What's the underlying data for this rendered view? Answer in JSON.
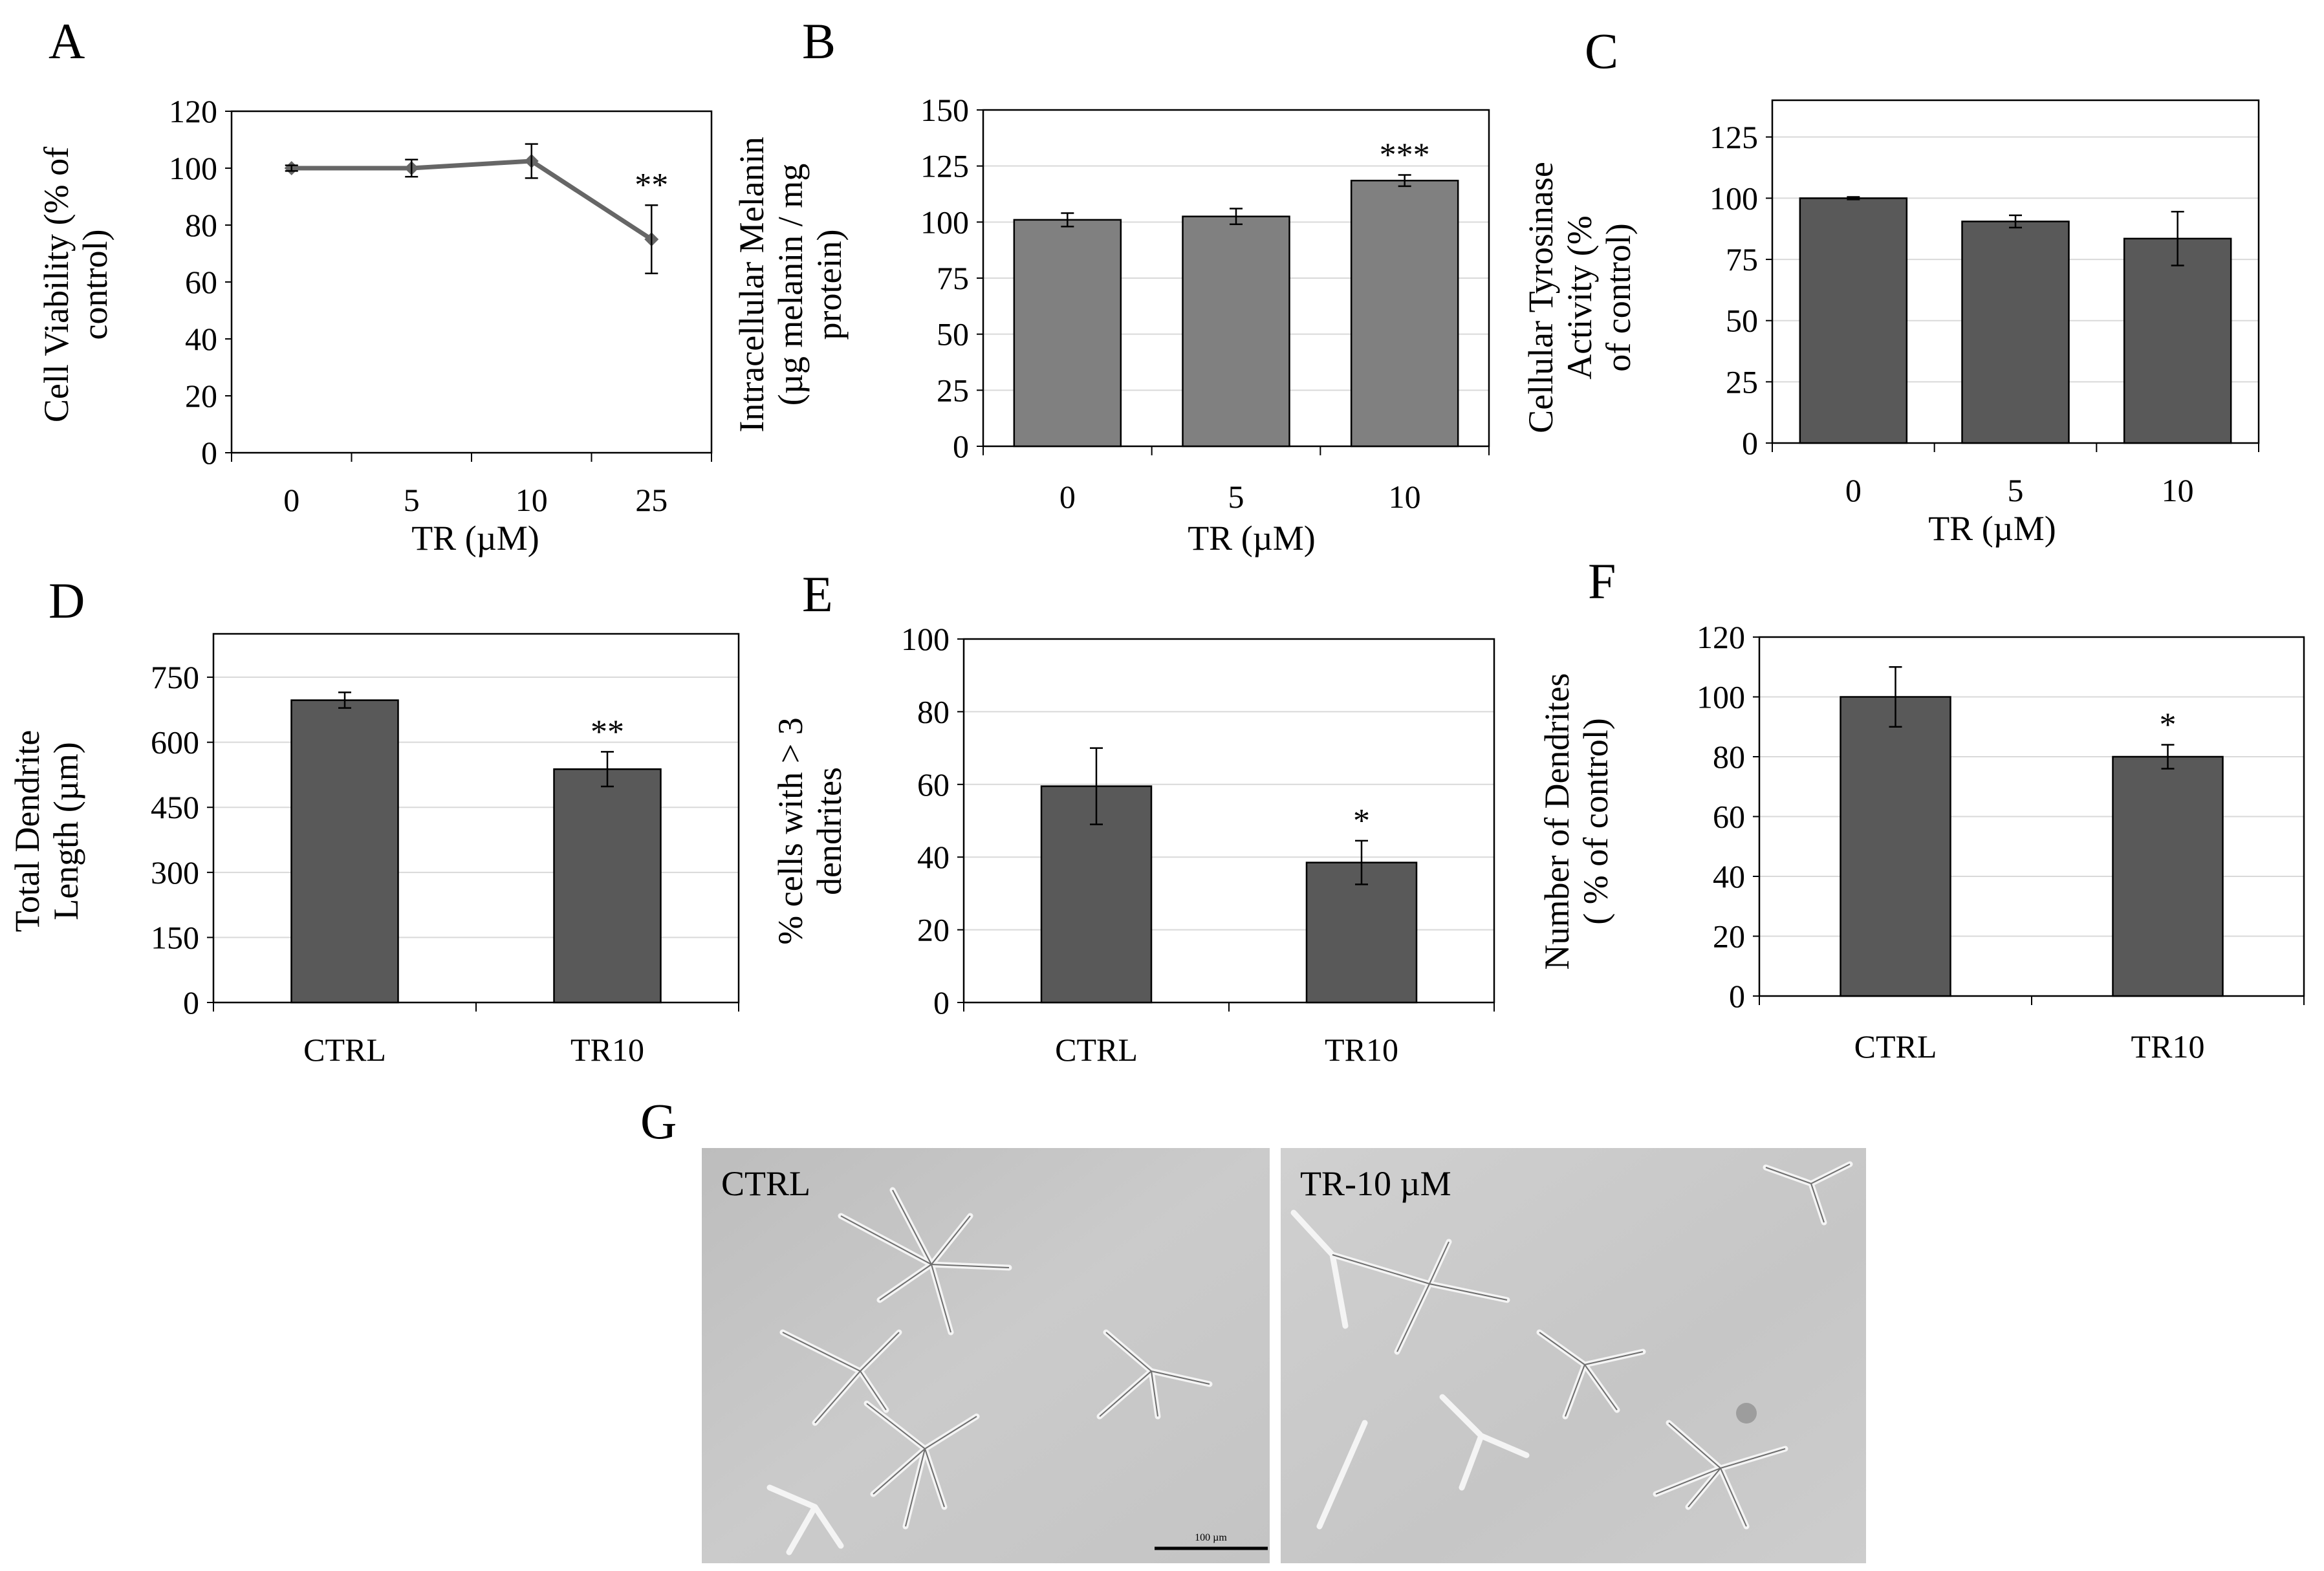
{
  "figure": {
    "panels": [
      {
        "letter": "A"
      },
      {
        "letter": "B"
      },
      {
        "letter": "C"
      },
      {
        "letter": "D"
      },
      {
        "letter": "E"
      },
      {
        "letter": "F"
      },
      {
        "letter": "G"
      }
    ]
  },
  "chart_data": [
    {
      "panel": "A",
      "type": "line",
      "categories": [
        "0",
        "5",
        "10",
        "25"
      ],
      "series": [
        {
          "values": [
            100,
            100,
            102.5,
            75
          ],
          "errors": [
            1,
            3,
            6,
            12
          ],
          "color": "#666666"
        }
      ],
      "xlabel": "TR (µM)",
      "ylabel_lines": [
        "Cell Viability (% of",
        "control)"
      ],
      "ylim": [
        0,
        120
      ],
      "yticks": [
        0,
        20,
        40,
        60,
        80,
        100,
        120
      ],
      "annotations": [
        {
          "category": "25",
          "text": "**"
        }
      ],
      "grid": false
    },
    {
      "panel": "B",
      "type": "bar",
      "categories": [
        "0",
        "5",
        "10"
      ],
      "series": [
        {
          "values": [
            101,
            102.5,
            118.5
          ],
          "errors": [
            3,
            3.5,
            2.5
          ],
          "color": "#808080"
        }
      ],
      "xlabel": "TR (µM)",
      "ylabel_lines": [
        "Intracellular Melanin",
        "(µg melanin / mg",
        "protein)"
      ],
      "ylim": [
        0,
        150
      ],
      "yticks": [
        0,
        25,
        50,
        75,
        100,
        125,
        150
      ],
      "annotations": [
        {
          "category": "10",
          "text": "***"
        }
      ],
      "grid": true
    },
    {
      "panel": "C",
      "type": "bar",
      "categories": [
        "0",
        "5",
        "10"
      ],
      "series": [
        {
          "values": [
            100,
            90.5,
            83.5
          ],
          "errors": [
            0.5,
            2.5,
            11
          ],
          "color": "#595959"
        }
      ],
      "xlabel": "TR (µM)",
      "ylabel_lines": [
        "Cellular Tyrosinase",
        "Activity (%",
        "of control)"
      ],
      "ylim": [
        0,
        140
      ],
      "yticks": [
        0,
        25,
        50,
        75,
        100,
        125
      ],
      "annotations": [],
      "grid": true
    },
    {
      "panel": "D",
      "type": "bar",
      "categories": [
        "CTRL",
        "TR10"
      ],
      "series": [
        {
          "values": [
            697,
            538
          ],
          "errors": [
            18,
            40
          ],
          "color": "#595959"
        }
      ],
      "xlabel": "",
      "ylabel_lines": [
        "Total Dendrite",
        "Length (µm)"
      ],
      "ylim": [
        0,
        850
      ],
      "yticks": [
        0,
        150,
        300,
        450,
        600,
        750
      ],
      "annotations": [
        {
          "category": "TR10",
          "text": "**"
        }
      ],
      "grid": true
    },
    {
      "panel": "E",
      "type": "bar",
      "categories": [
        "CTRL",
        "TR10"
      ],
      "series": [
        {
          "values": [
            59.5,
            38.5
          ],
          "errors": [
            10.5,
            6
          ],
          "color": "#595959"
        }
      ],
      "xlabel": "",
      "ylabel_lines": [
        "% cells  with > 3",
        "dendrites"
      ],
      "ylim": [
        0,
        100
      ],
      "yticks": [
        0,
        20,
        40,
        60,
        80,
        100
      ],
      "annotations": [
        {
          "category": "TR10",
          "text": "*"
        }
      ],
      "grid": true
    },
    {
      "panel": "F",
      "type": "bar",
      "categories": [
        "CTRL",
        "TR10"
      ],
      "series": [
        {
          "values": [
            100,
            80
          ],
          "errors": [
            10,
            4
          ],
          "color": "#595959"
        }
      ],
      "xlabel": "",
      "ylabel_lines": [
        "Number of  Dendrites",
        "( % of control)"
      ],
      "ylim": [
        0,
        120
      ],
      "yticks": [
        0,
        20,
        40,
        60,
        80,
        100,
        120
      ],
      "annotations": [
        {
          "category": "TR10",
          "text": "*"
        }
      ],
      "grid": true
    }
  ],
  "micrographs": [
    {
      "label": "CTRL",
      "scale_bar": "100 µm"
    },
    {
      "label": "TR-10 µM"
    }
  ],
  "colors": {
    "bar_dark": "#595959",
    "bar_mid": "#808080",
    "line": "#666666",
    "grid": "#d9d9d9",
    "micrograph_bg": "#c8c8c8"
  }
}
